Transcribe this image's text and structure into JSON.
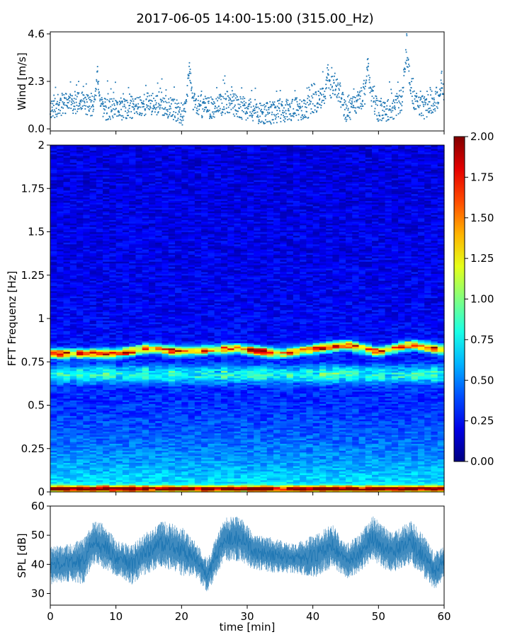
{
  "figure": {
    "title": "2017-06-05 14:00-15:00 (315.00_Hz)"
  },
  "chart_data": [
    {
      "type": "scatter",
      "panel": "wind",
      "ylabel": "Wind [m/s]",
      "xlim": [
        0,
        60
      ],
      "ylim": [
        -0.1,
        4.7
      ],
      "yticks": [
        0.0,
        2.3,
        4.6
      ],
      "ytick_labels": [
        "0.0",
        "2.3",
        "4.6"
      ],
      "color": "#1f77b4",
      "seed": 11,
      "baseline": [
        {
          "t": 0,
          "v": 1.0
        },
        {
          "t": 3,
          "v": 1.3
        },
        {
          "t": 6,
          "v": 1.2
        },
        {
          "t": 9,
          "v": 0.9
        },
        {
          "t": 12,
          "v": 1.0
        },
        {
          "t": 15,
          "v": 1.25
        },
        {
          "t": 18,
          "v": 1.05
        },
        {
          "t": 20,
          "v": 0.7
        },
        {
          "t": 22,
          "v": 1.2
        },
        {
          "t": 24,
          "v": 1.0
        },
        {
          "t": 27,
          "v": 1.3
        },
        {
          "t": 30,
          "v": 0.9
        },
        {
          "t": 33,
          "v": 0.75
        },
        {
          "t": 36,
          "v": 0.9
        },
        {
          "t": 39,
          "v": 1.0
        },
        {
          "t": 42,
          "v": 1.6
        },
        {
          "t": 43.5,
          "v": 2.2
        },
        {
          "t": 45,
          "v": 0.8
        },
        {
          "t": 47,
          "v": 1.3
        },
        {
          "t": 48.5,
          "v": 2.0
        },
        {
          "t": 50,
          "v": 0.8
        },
        {
          "t": 52,
          "v": 0.9
        },
        {
          "t": 53.5,
          "v": 1.4
        },
        {
          "t": 54.3,
          "v": 3.2
        },
        {
          "t": 55.5,
          "v": 1.3
        },
        {
          "t": 57,
          "v": 1.0
        },
        {
          "t": 59,
          "v": 1.5
        },
        {
          "t": 60,
          "v": 0.9
        }
      ],
      "peaks": [
        {
          "t": 7.2,
          "v": 2.8
        },
        {
          "t": 21.2,
          "v": 3.2
        },
        {
          "t": 42.3,
          "v": 3.1
        },
        {
          "t": 48.4,
          "v": 3.4
        },
        {
          "t": 54.3,
          "v": 4.6
        },
        {
          "t": 59.6,
          "v": 2.7
        }
      ]
    },
    {
      "type": "heatmap",
      "panel": "spectrogram",
      "ylabel": "FFT Frequenz [Hz]",
      "xlim": [
        0,
        60
      ],
      "ylim": [
        0,
        2
      ],
      "yticks": [
        0,
        0.25,
        0.5,
        0.75,
        1,
        1.25,
        1.5,
        1.75,
        2
      ],
      "ytick_labels": [
        "0",
        "0.25",
        "0.5",
        "0.75",
        "1",
        "1.25",
        "1.5",
        "1.75",
        "2"
      ],
      "colormap": "jet",
      "colorbar": {
        "vmin": 0,
        "vmax": 2,
        "ticks": [
          0.0,
          0.25,
          0.5,
          0.75,
          1.0,
          1.25,
          1.5,
          1.75,
          2.0
        ],
        "tick_labels": [
          "0.00",
          "0.25",
          "0.50",
          "0.75",
          "1.00",
          "1.25",
          "1.50",
          "1.75",
          "2.00"
        ]
      },
      "time_bins": 60,
      "freq_bins": 200,
      "seed": 42,
      "bands": [
        {
          "freq": 0.82,
          "amplitude": 1.45,
          "width": 0.025
        },
        {
          "freq": 0.68,
          "amplitude": 0.55,
          "width": 0.05
        },
        {
          "freq": 0.02,
          "amplitude": 1.6,
          "width": 0.015
        }
      ],
      "band_drift": [
        {
          "t": 0,
          "f": 0.8
        },
        {
          "t": 10,
          "f": 0.8
        },
        {
          "t": 15,
          "f": 0.83
        },
        {
          "t": 20,
          "f": 0.81
        },
        {
          "t": 28,
          "f": 0.83
        },
        {
          "t": 35,
          "f": 0.8
        },
        {
          "t": 45,
          "f": 0.85
        },
        {
          "t": 50,
          "f": 0.81
        },
        {
          "t": 55,
          "f": 0.85
        },
        {
          "t": 60,
          "f": 0.82
        }
      ]
    },
    {
      "type": "area",
      "panel": "spl",
      "ylabel": "SPL [dB]",
      "xlabel": "time [min]",
      "xlim": [
        0,
        60
      ],
      "ylim": [
        26,
        60
      ],
      "yticks": [
        30,
        40,
        50,
        60
      ],
      "ytick_labels": [
        "30",
        "40",
        "50",
        "60"
      ],
      "xticks": [
        0,
        10,
        20,
        30,
        40,
        50,
        60
      ],
      "xtick_labels": [
        "0",
        "10",
        "20",
        "30",
        "40",
        "50",
        "60"
      ],
      "color": "#1f77b4",
      "seed": 7,
      "envelope": [
        {
          "t": 0,
          "lo": 33,
          "hi": 46
        },
        {
          "t": 3,
          "lo": 34,
          "hi": 47
        },
        {
          "t": 5,
          "lo": 33,
          "hi": 49
        },
        {
          "t": 6.5,
          "lo": 40,
          "hi": 55
        },
        {
          "t": 8.5,
          "lo": 38,
          "hi": 54
        },
        {
          "t": 10,
          "lo": 36,
          "hi": 48
        },
        {
          "t": 12.5,
          "lo": 33,
          "hi": 47
        },
        {
          "t": 14,
          "lo": 36,
          "hi": 50
        },
        {
          "t": 17,
          "lo": 39,
          "hi": 55
        },
        {
          "t": 20,
          "lo": 36,
          "hi": 53
        },
        {
          "t": 22,
          "lo": 36,
          "hi": 48
        },
        {
          "t": 24,
          "lo": 30,
          "hi": 42
        },
        {
          "t": 25,
          "lo": 35,
          "hi": 48
        },
        {
          "t": 26.5,
          "lo": 41,
          "hi": 56
        },
        {
          "t": 29,
          "lo": 41,
          "hi": 57
        },
        {
          "t": 31,
          "lo": 38,
          "hi": 51
        },
        {
          "t": 34,
          "lo": 37,
          "hi": 49
        },
        {
          "t": 37,
          "lo": 37,
          "hi": 47
        },
        {
          "t": 40,
          "lo": 35,
          "hi": 50
        },
        {
          "t": 43,
          "lo": 39,
          "hi": 54
        },
        {
          "t": 45,
          "lo": 35,
          "hi": 47
        },
        {
          "t": 47,
          "lo": 37,
          "hi": 50
        },
        {
          "t": 49,
          "lo": 41,
          "hi": 57
        },
        {
          "t": 52,
          "lo": 37,
          "hi": 51
        },
        {
          "t": 55,
          "lo": 40,
          "hi": 55
        },
        {
          "t": 57,
          "lo": 35,
          "hi": 50
        },
        {
          "t": 58.5,
          "lo": 31,
          "hi": 44
        },
        {
          "t": 60,
          "lo": 35,
          "hi": 47
        }
      ]
    }
  ]
}
